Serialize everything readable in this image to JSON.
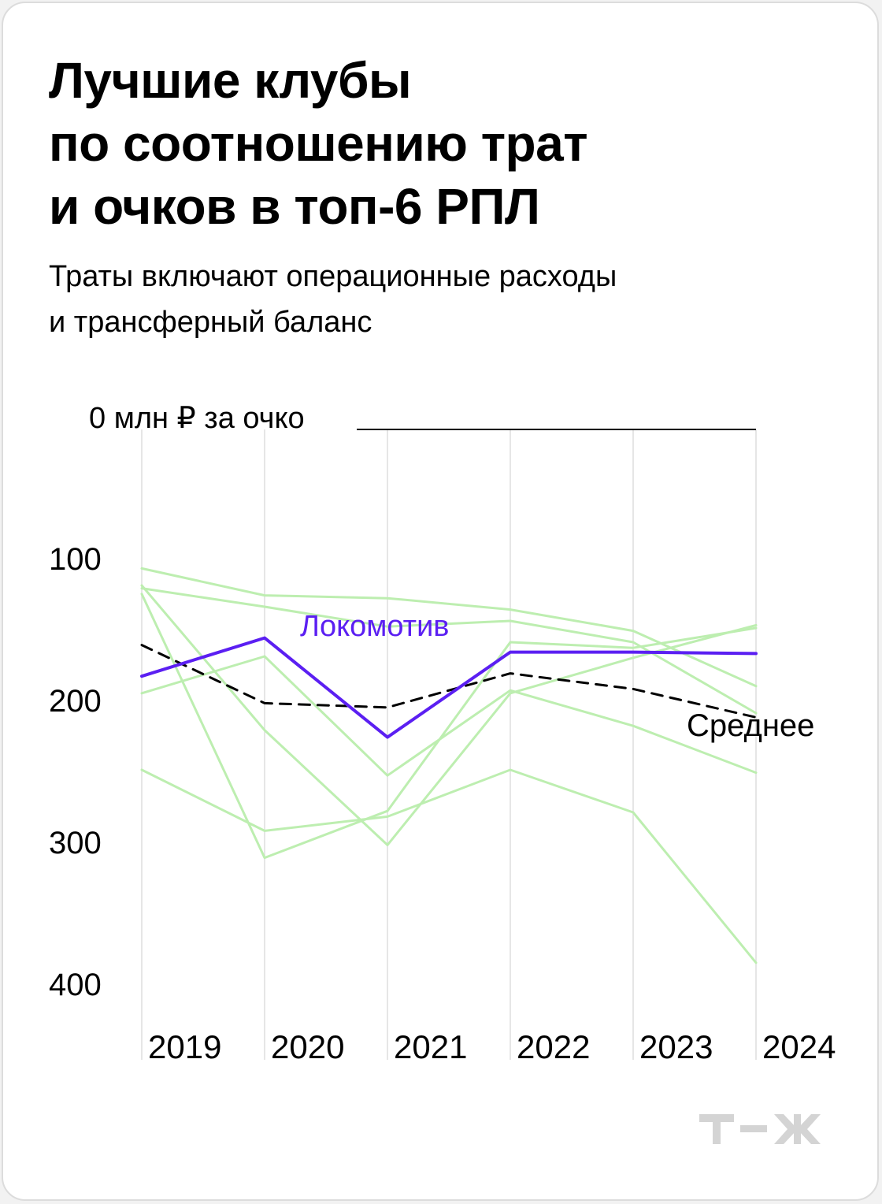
{
  "title_lines": [
    "Лучшие клубы",
    "по соотношению трат",
    "и очков в топ-6 РПЛ"
  ],
  "subtitle_lines": [
    "Траты включают операционные расходы",
    "и трансферный баланс"
  ],
  "brand": "т—ж",
  "colors": {
    "background": "#ffffff",
    "highlight": "#5b1ff2",
    "average": "#000000",
    "other_clubs": "#bdeeb0",
    "grid": "#dddddd"
  },
  "chart_data": {
    "type": "line",
    "y_reversed": true,
    "ylim": [
      0,
      400
    ],
    "y_ticks": [
      0,
      100,
      200,
      300,
      400
    ],
    "y_tick_labels": [
      "0 млн ₽ за очко",
      "100",
      "200",
      "300",
      "400"
    ],
    "x": [
      "2019",
      "2020",
      "2021",
      "2022",
      "2023",
      "2024"
    ],
    "highlight": {
      "name": "Локомотив",
      "values": [
        174,
        147,
        217,
        157,
        157,
        158
      ]
    },
    "average": {
      "name": "Среднее",
      "values": [
        152,
        193,
        196,
        172,
        183,
        203
      ]
    },
    "other_series": [
      {
        "values": [
          98,
          117,
          119,
          127,
          142,
          181
        ]
      },
      {
        "values": [
          112,
          125,
          139,
          135,
          150,
          200
        ]
      },
      {
        "values": [
          240,
          283,
          273,
          240,
          270,
          376
        ]
      },
      {
        "values": [
          186,
          160,
          244,
          184,
          209,
          242
        ]
      },
      {
        "values": [
          116,
          302,
          269,
          150,
          154,
          140
        ]
      },
      {
        "values": [
          110,
          212,
          293,
          186,
          161,
          138
        ]
      }
    ]
  }
}
